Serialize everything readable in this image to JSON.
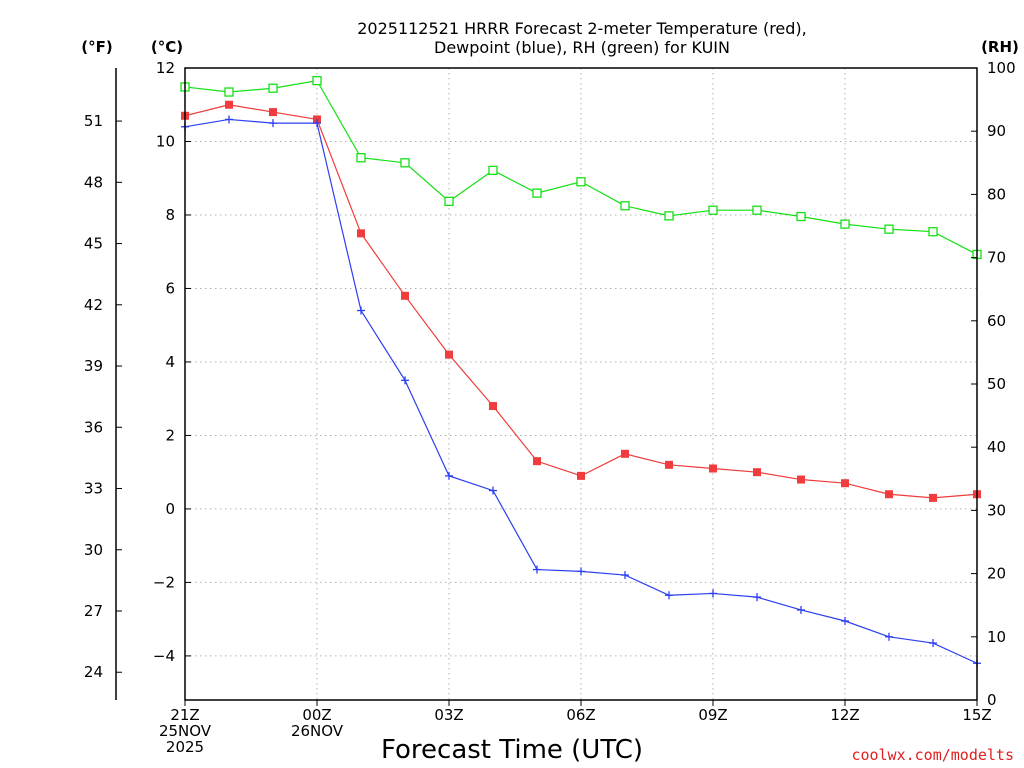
{
  "chart_data": {
    "type": "line",
    "title": [
      "2025112521 HRRR Forecast 2-meter Temperature (red),",
      "Dewpoint (blue), RH (green) for KUIN"
    ],
    "xlabel": "Forecast Time (UTC)",
    "credit": "coolwx.com/modelts",
    "units": {
      "fahrenheit": "(°F)",
      "celsius": "(°C)",
      "rh": "(RH)"
    },
    "x_hours": [
      0,
      1,
      2,
      3,
      4,
      5,
      6,
      7,
      8,
      9,
      10,
      11,
      12,
      13,
      14,
      15,
      16,
      17,
      18
    ],
    "x_ticks": [
      {
        "hour": 0,
        "lines": [
          "21Z",
          "25NOV",
          "2025"
        ]
      },
      {
        "hour": 3,
        "lines": [
          "00Z",
          "26NOV"
        ]
      },
      {
        "hour": 6,
        "lines": [
          "03Z"
        ]
      },
      {
        "hour": 9,
        "lines": [
          "06Z"
        ]
      },
      {
        "hour": 12,
        "lines": [
          "09Z"
        ]
      },
      {
        "hour": 15,
        "lines": [
          "12Z"
        ]
      },
      {
        "hour": 18,
        "lines": [
          "15Z"
        ]
      }
    ],
    "y_celsius": {
      "lim": [
        -5.2,
        12
      ],
      "ticks": [
        "12",
        "10",
        "8",
        "6",
        "4",
        "2",
        "0",
        "−2",
        "−4"
      ],
      "tick_values": [
        12,
        10,
        8,
        6,
        4,
        2,
        0,
        -2,
        -4
      ]
    },
    "y_fahrenheit": {
      "ticks": [
        "51",
        "48",
        "45",
        "42",
        "39",
        "36",
        "33",
        "30",
        "27",
        "24"
      ],
      "tick_values": [
        51,
        48,
        45,
        42,
        39,
        36,
        33,
        30,
        27,
        24
      ]
    },
    "y_rh": {
      "lim": [
        0,
        100
      ],
      "ticks": [
        "100",
        "90",
        "80",
        "70",
        "60",
        "50",
        "40",
        "30",
        "20",
        "10",
        "0"
      ],
      "tick_values": [
        100,
        90,
        80,
        70,
        60,
        50,
        40,
        30,
        20,
        10,
        0
      ]
    },
    "series": [
      {
        "name": "2-meter Temperature",
        "color": "#f03c3c",
        "marker": "filled-square",
        "axis": "celsius",
        "values": [
          10.7,
          11.0,
          10.8,
          10.6,
          7.5,
          5.8,
          4.2,
          2.8,
          1.3,
          0.9,
          1.5,
          1.2,
          1.1,
          1.0,
          0.8,
          0.7,
          0.4,
          0.3,
          0.4
        ]
      },
      {
        "name": "Dewpoint",
        "color": "#2c3ff0",
        "marker": "plus",
        "axis": "celsius",
        "values": [
          10.4,
          10.6,
          10.5,
          10.5,
          5.4,
          3.5,
          0.9,
          0.5,
          -1.65,
          -1.7,
          -1.8,
          -2.35,
          -2.3,
          -2.4,
          -2.75,
          -3.05,
          -3.48,
          -3.65,
          -4.2
        ]
      },
      {
        "name": "RH",
        "color": "#14e014",
        "marker": "open-square",
        "axis": "rh",
        "values": [
          97.0,
          96.2,
          96.8,
          98.0,
          85.8,
          85.0,
          78.9,
          83.8,
          80.2,
          82.0,
          78.2,
          76.6,
          77.5,
          77.5,
          76.5,
          75.3,
          74.5,
          74.1,
          70.5
        ]
      }
    ]
  }
}
